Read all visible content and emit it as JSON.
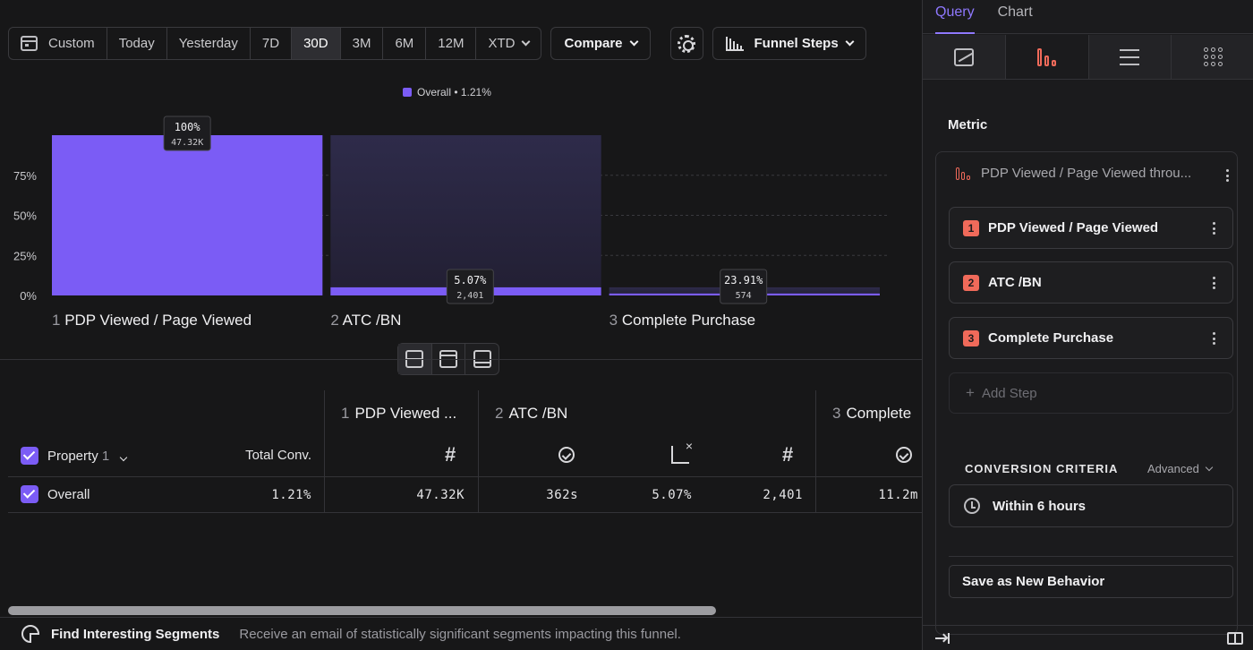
{
  "toolbar": {
    "date_options": [
      "Custom",
      "Today",
      "Yesterday",
      "7D",
      "30D",
      "3M",
      "6M",
      "12M",
      "XTD"
    ],
    "active_option": "30D",
    "compare_label": "Compare",
    "funnel_steps_label": "Funnel Steps"
  },
  "legend": {
    "label": "Overall • 1.21%",
    "color": "#7b5cf5"
  },
  "chart_data": {
    "type": "bar",
    "categories": [
      "PDP Viewed / Page Viewed",
      "ATC /BN",
      "Complete Purchase"
    ],
    "category_numbers": [
      "1",
      "2",
      "3"
    ],
    "series": [
      {
        "values": [
          100,
          5.07,
          1.21
        ]
      }
    ],
    "bar_labels": [
      {
        "pct": "100%",
        "count": "47.32K"
      },
      {
        "pct": "5.07%",
        "count": "2,401"
      },
      {
        "pct": "23.91%",
        "count": "574"
      }
    ],
    "yticks": [
      "75%",
      "50%",
      "25%",
      "0%"
    ],
    "ylim": [
      0,
      100
    ],
    "grid": true,
    "colors": {
      "bar": "#7b5cf5",
      "dropoff": "#2c2a44"
    }
  },
  "table": {
    "property_label": "Property",
    "property_count": "1",
    "total_conv_label": "Total Conv.",
    "steps": [
      {
        "n": "1",
        "label": "PDP Viewed ..."
      },
      {
        "n": "2",
        "label": "ATC /BN"
      },
      {
        "n": "3",
        "label": "Complete"
      }
    ],
    "row": {
      "label": "Overall",
      "total_conv": "1.21%",
      "s1_count": "47.32K",
      "s2_time": "362s",
      "s2_rate": "5.07%",
      "s2_count": "2,401",
      "s3_time": "11.2m"
    }
  },
  "footer": {
    "title": "Find Interesting Segments",
    "text": "Receive an email of statistically significant segments impacting this funnel."
  },
  "panel": {
    "tabs": [
      "Query",
      "Chart"
    ],
    "active_tab": "Query",
    "metric_title": "Metric",
    "metric_name": "PDP Viewed / Page Viewed throu...",
    "steps": [
      {
        "n": "1",
        "label": "PDP Viewed / Page Viewed"
      },
      {
        "n": "2",
        "label": "ATC /BN"
      },
      {
        "n": "3",
        "label": "Complete Purchase"
      }
    ],
    "add_step": "Add Step",
    "conversion_title": "CONVERSION CRITERIA",
    "advanced_label": "Advanced",
    "within_label": "Within 6 hours",
    "save_label": "Save as New Behavior",
    "accent": "#8f78ff",
    "step_color": "#f06a5a"
  }
}
